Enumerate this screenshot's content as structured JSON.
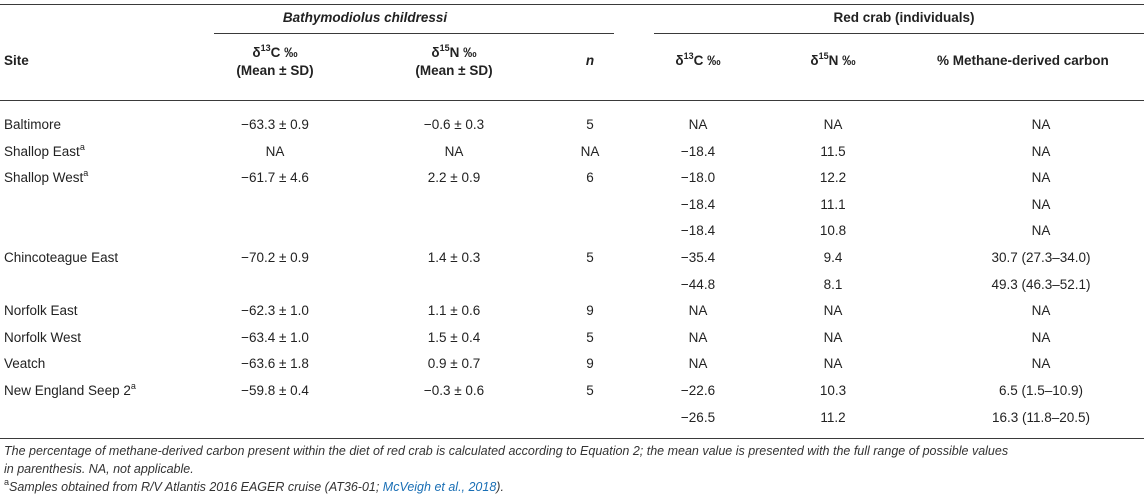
{
  "header": {
    "group1": "Bathymodiolus childressi",
    "group2": "Red crab (individuals)",
    "col_site": "Site",
    "col_bc_d13c": "δ13C ‰",
    "col_bc_d13c_sub": "(Mean ± SD)",
    "col_bc_d15n": "δ15N ‰",
    "col_bc_d15n_sub": "(Mean ± SD)",
    "col_n": "n",
    "col_rc_d13c": "δ13C ‰",
    "col_rc_d15n": "δ15N ‰",
    "col_methane": "% Methane-derived carbon"
  },
  "rows": [
    {
      "site": "Baltimore",
      "sup": "",
      "bc_d13c": "−63.3 ± 0.9",
      "bc_d15n": "−0.6 ± 0.3",
      "n": "5",
      "rc_d13c": "NA",
      "rc_d15n": "NA",
      "methane": "NA"
    },
    {
      "site": "Shallop East",
      "sup": "a",
      "bc_d13c": "NA",
      "bc_d15n": "NA",
      "n": "NA",
      "rc_d13c": "−18.4",
      "rc_d15n": "11.5",
      "methane": "NA"
    },
    {
      "site": "Shallop West",
      "sup": "a",
      "bc_d13c": "−61.7 ± 4.6",
      "bc_d15n": "2.2 ± 0.9",
      "n": "6",
      "rc_d13c": "−18.0",
      "rc_d15n": "12.2",
      "methane": "NA"
    },
    {
      "site": "",
      "sup": "",
      "bc_d13c": "",
      "bc_d15n": "",
      "n": "",
      "rc_d13c": "−18.4",
      "rc_d15n": "11.1",
      "methane": "NA"
    },
    {
      "site": "",
      "sup": "",
      "bc_d13c": "",
      "bc_d15n": "",
      "n": "",
      "rc_d13c": "−18.4",
      "rc_d15n": "10.8",
      "methane": "NA"
    },
    {
      "site": "Chincoteague East",
      "sup": "",
      "bc_d13c": "−70.2 ± 0.9",
      "bc_d15n": "1.4 ± 0.3",
      "n": "5",
      "rc_d13c": "−35.4",
      "rc_d15n": "9.4",
      "methane": "30.7 (27.3–34.0)"
    },
    {
      "site": "",
      "sup": "",
      "bc_d13c": "",
      "bc_d15n": "",
      "n": "",
      "rc_d13c": "−44.8",
      "rc_d15n": "8.1",
      "methane": "49.3 (46.3–52.1)"
    },
    {
      "site": "Norfolk East",
      "sup": "",
      "bc_d13c": "−62.3 ± 1.0",
      "bc_d15n": "1.1 ± 0.6",
      "n": "9",
      "rc_d13c": "NA",
      "rc_d15n": "NA",
      "methane": "NA"
    },
    {
      "site": "Norfolk West",
      "sup": "",
      "bc_d13c": "−63.4 ± 1.0",
      "bc_d15n": "1.5 ± 0.4",
      "n": "5",
      "rc_d13c": "NA",
      "rc_d15n": "NA",
      "methane": "NA"
    },
    {
      "site": "Veatch",
      "sup": "",
      "bc_d13c": "−63.6 ± 1.8",
      "bc_d15n": "0.9 ± 0.7",
      "n": "9",
      "rc_d13c": "NA",
      "rc_d15n": "NA",
      "methane": "NA"
    },
    {
      "site": "New England Seep 2",
      "sup": "a",
      "bc_d13c": "−59.8 ± 0.4",
      "bc_d15n": "−0.3 ± 0.6",
      "n": "5",
      "rc_d13c": "−22.6",
      "rc_d15n": "10.3",
      "methane": "6.5 (1.5–10.9)"
    },
    {
      "site": "",
      "sup": "",
      "bc_d13c": "",
      "bc_d15n": "",
      "n": "",
      "rc_d13c": "−26.5",
      "rc_d15n": "11.2",
      "methane": "16.3 (11.8–20.5)"
    }
  ],
  "footnote": {
    "line1": "The percentage of methane-derived carbon present within the diet of red crab is calculated according to Equation 2; the mean value is presented with the full range of possible values",
    "line2": "in parenthesis. NA, not applicable.",
    "sup_a": "a",
    "line3_prefix": "Samples obtained from R/V Atlantis 2016 EAGER cruise (AT36-01; ",
    "line3_cite": "McVeigh et al., 2018",
    "line3_suffix": ")."
  }
}
